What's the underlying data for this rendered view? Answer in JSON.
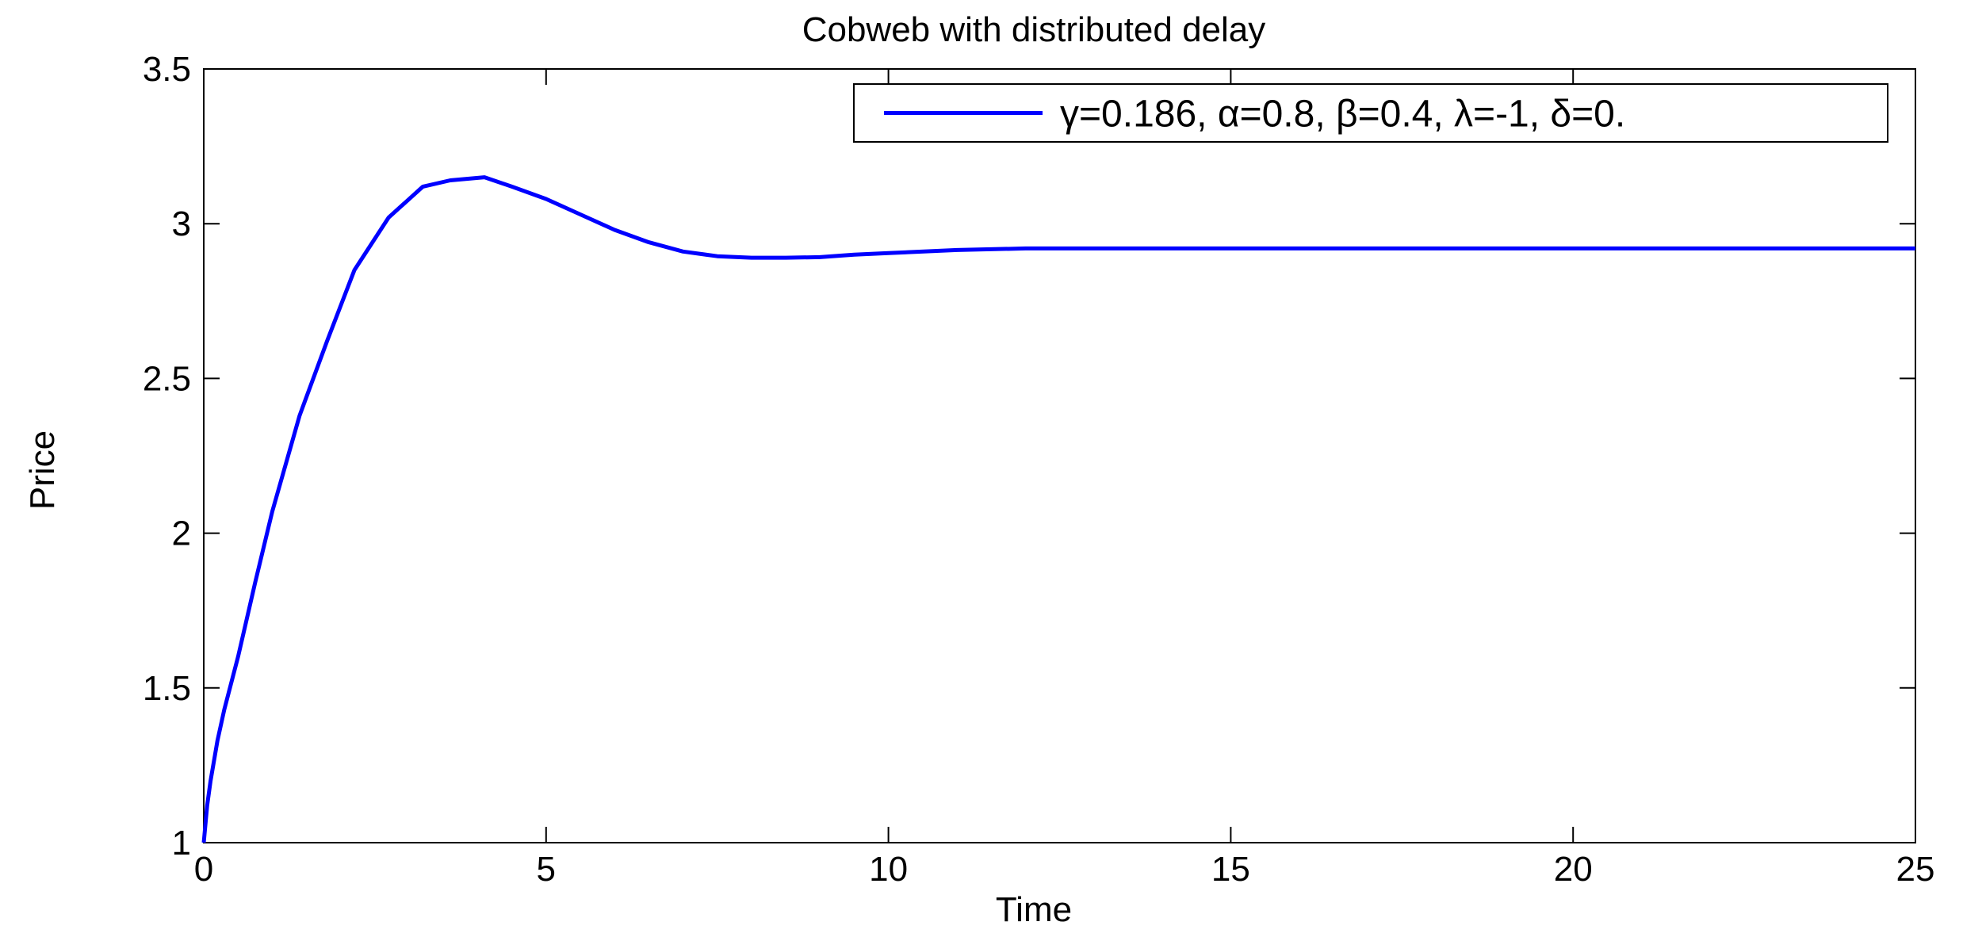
{
  "chart_data": {
    "type": "line",
    "title": "Cobweb with distributed delay",
    "xlabel": "Time",
    "ylabel": "Price",
    "xlim": [
      0,
      25
    ],
    "ylim": [
      1,
      3.5
    ],
    "xticks": [
      0,
      5,
      10,
      15,
      20,
      25
    ],
    "yticks": [
      1,
      1.5,
      2,
      2.5,
      3,
      3.5
    ],
    "xtick_labels": [
      "0",
      "5",
      "10",
      "15",
      "20",
      "25"
    ],
    "ytick_labels": [
      "1",
      "1.5",
      "2",
      "2.5",
      "3",
      "3.5"
    ],
    "grid": false,
    "legend_position": "top-right",
    "series": [
      {
        "name": "γ=0.186, α=0.8, β=0.4, λ=-1, δ=0.",
        "color": "#0000ff",
        "x": [
          0,
          0.05,
          0.1,
          0.2,
          0.3,
          0.5,
          0.75,
          1.0,
          1.4,
          1.8,
          2.2,
          2.7,
          3.2,
          3.6,
          4.1,
          4.5,
          5.0,
          5.5,
          6.0,
          6.5,
          7.0,
          7.5,
          8.0,
          8.5,
          9.0,
          9.5,
          10.0,
          11.0,
          12.0,
          14.0,
          17.0,
          20.0,
          25.0
        ],
        "y": [
          1.0,
          1.12,
          1.2,
          1.33,
          1.43,
          1.6,
          1.84,
          2.07,
          2.38,
          2.62,
          2.85,
          3.02,
          3.12,
          3.14,
          3.15,
          3.12,
          3.08,
          3.03,
          2.98,
          2.94,
          2.91,
          2.895,
          2.89,
          2.89,
          2.892,
          2.9,
          2.905,
          2.915,
          2.92,
          2.92,
          2.92,
          2.92,
          2.92
        ]
      }
    ]
  }
}
